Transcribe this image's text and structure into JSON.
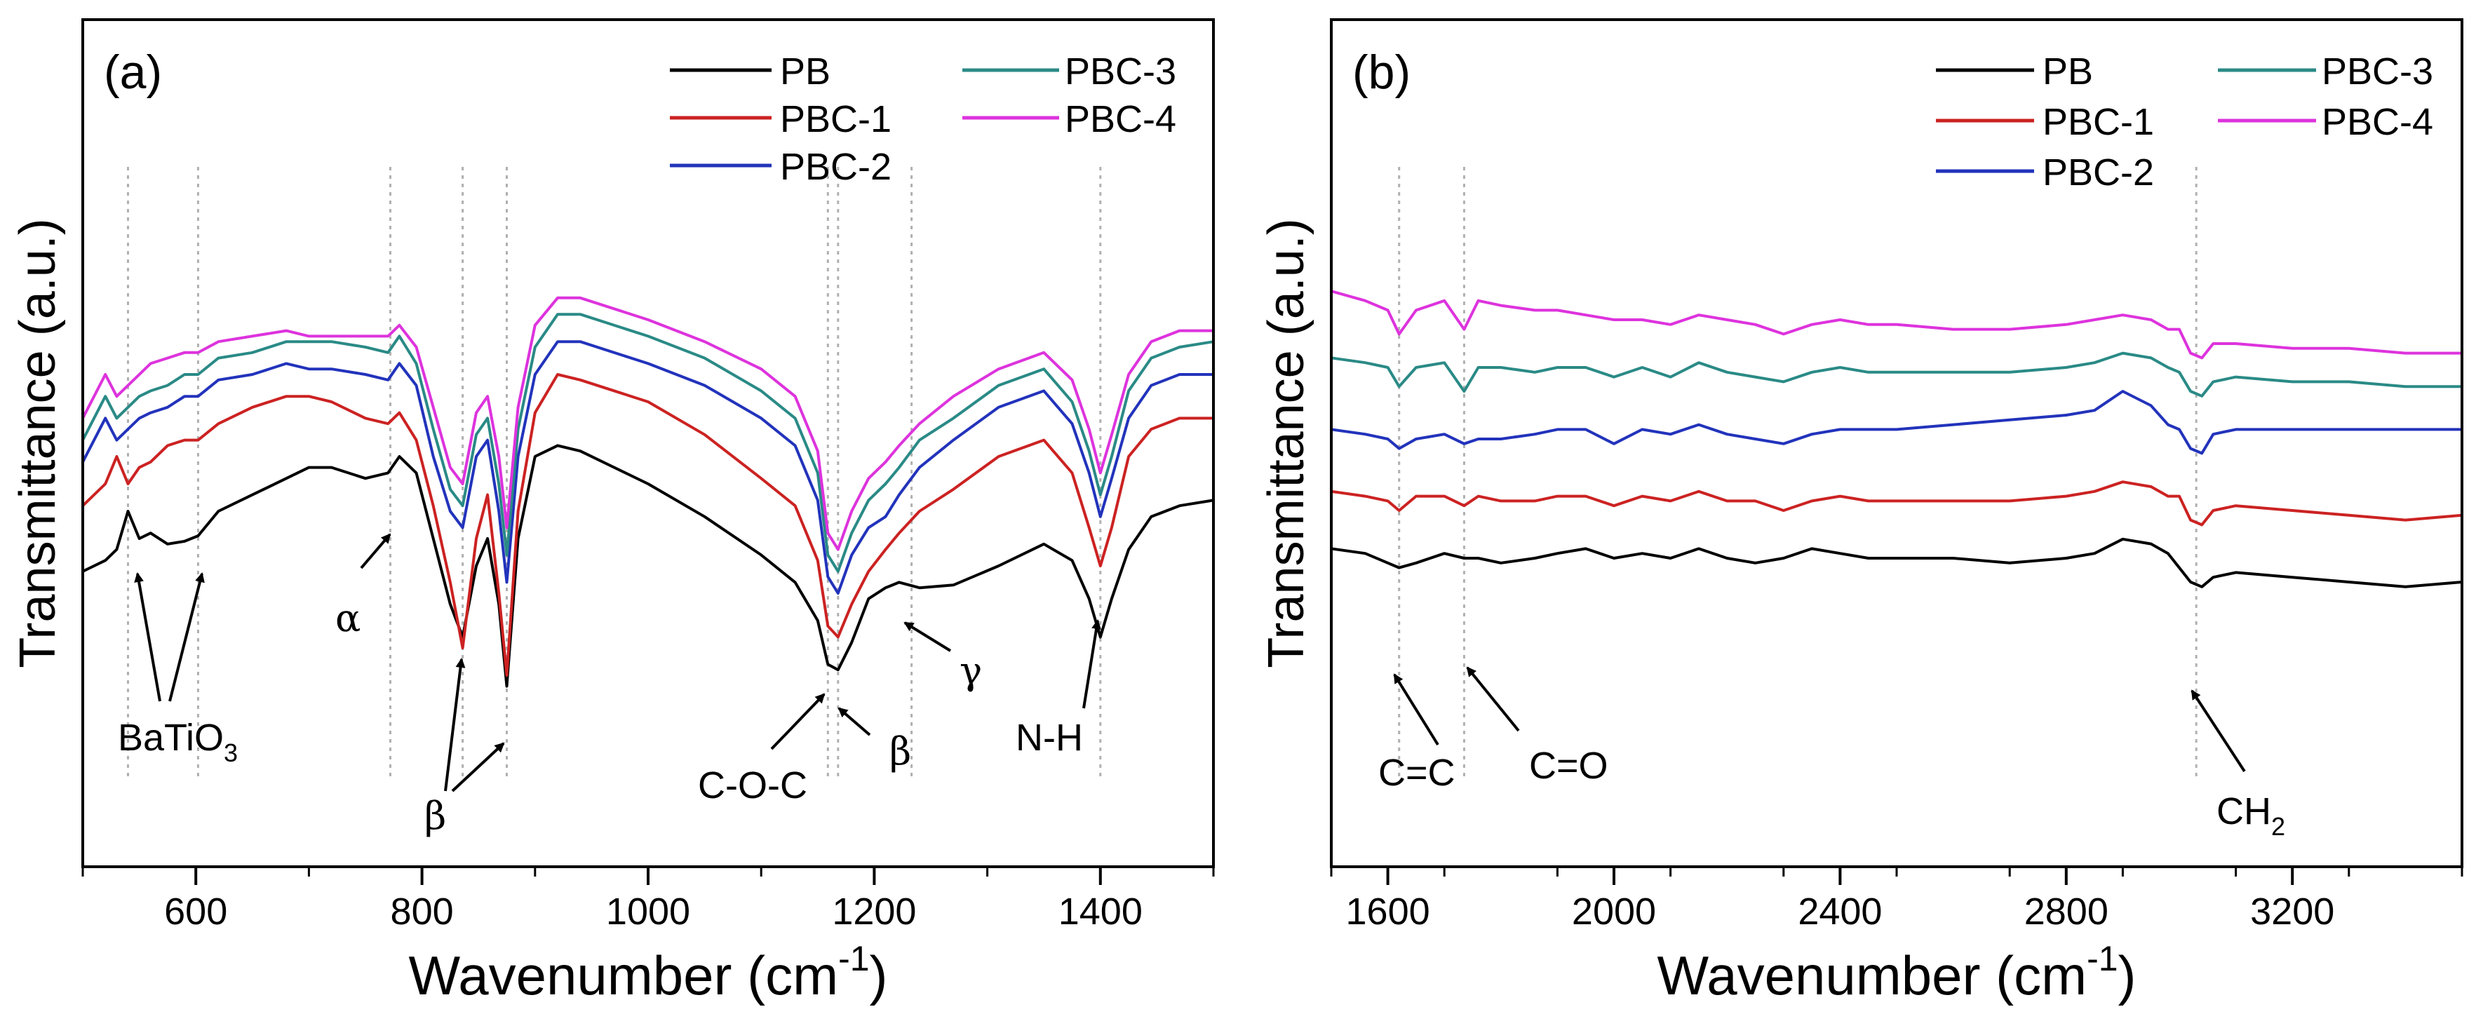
{
  "chart_data": [
    {
      "type": "line",
      "panel_label": "(a)",
      "xlabel_main": "Wavenumber (cm",
      "xlabel_sup": "-1",
      "xlabel_end": ")",
      "ylabel": "Transmittance (a.u.)",
      "xlim": [
        500,
        1500
      ],
      "ylim": [
        0,
        100
      ],
      "x_ticks": [
        600,
        800,
        1000,
        1200,
        1400
      ],
      "x_tick_labels": [
        "600",
        "800",
        "1000",
        "1200",
        "1400"
      ],
      "reference_lines": [
        540,
        602,
        772,
        836,
        875,
        1159,
        1168,
        1233,
        1400
      ],
      "series": [
        {
          "name": "PB",
          "color": "#000000",
          "x": [
            500,
            520,
            530,
            540,
            550,
            560,
            575,
            590,
            602,
            620,
            650,
            680,
            700,
            720,
            750,
            770,
            780,
            795,
            810,
            825,
            836,
            848,
            858,
            868,
            875,
            885,
            900,
            920,
            940,
            1000,
            1050,
            1100,
            1130,
            1150,
            1159,
            1168,
            1180,
            1195,
            1210,
            1222,
            1240,
            1270,
            1310,
            1350,
            1375,
            1390,
            1400,
            1410,
            1425,
            1445,
            1470,
            1500
          ],
          "y": [
            34,
            36,
            38,
            45,
            40,
            41,
            39,
            39.5,
            40.5,
            45,
            48,
            51,
            53,
            53,
            51,
            52,
            55,
            52,
            40,
            28,
            22,
            35,
            40,
            28,
            13,
            40,
            55,
            57,
            56,
            50,
            44,
            37,
            32,
            25,
            17,
            16,
            21,
            29,
            31,
            32,
            31,
            31.5,
            35,
            39,
            36,
            29,
            22,
            29,
            38,
            44,
            46,
            47
          ]
        },
        {
          "name": "PBC-1",
          "color": "#cc2222",
          "x": [
            500,
            520,
            530,
            540,
            550,
            560,
            575,
            590,
            602,
            620,
            650,
            680,
            700,
            720,
            750,
            770,
            780,
            795,
            810,
            825,
            836,
            848,
            858,
            868,
            875,
            885,
            900,
            920,
            940,
            1000,
            1050,
            1100,
            1130,
            1150,
            1159,
            1168,
            1180,
            1195,
            1210,
            1222,
            1240,
            1270,
            1310,
            1350,
            1375,
            1390,
            1400,
            1410,
            1425,
            1445,
            1470,
            1500
          ],
          "y": [
            46,
            50,
            55,
            50,
            53,
            54,
            57,
            58,
            58,
            61,
            64,
            66,
            66,
            65,
            62,
            61,
            63,
            58,
            46,
            32,
            20,
            40,
            48,
            30,
            15,
            45,
            63,
            70,
            69,
            65,
            59,
            51,
            46,
            36,
            24,
            22,
            28,
            34,
            38,
            41,
            45,
            49,
            55,
            58,
            52,
            42,
            35,
            42,
            55,
            60,
            62,
            62
          ]
        },
        {
          "name": "PBC-2",
          "color": "#2233bb",
          "x": [
            500,
            520,
            530,
            540,
            550,
            560,
            575,
            590,
            602,
            620,
            650,
            680,
            700,
            720,
            750,
            770,
            780,
            795,
            810,
            825,
            836,
            848,
            858,
            868,
            875,
            885,
            900,
            920,
            940,
            1000,
            1050,
            1100,
            1130,
            1150,
            1159,
            1168,
            1180,
            1195,
            1210,
            1222,
            1240,
            1270,
            1310,
            1350,
            1375,
            1390,
            1400,
            1410,
            1425,
            1445,
            1470,
            1500
          ],
          "y": [
            54,
            62,
            58,
            60,
            62,
            63,
            64,
            66,
            66,
            69,
            70,
            72,
            71,
            71,
            70,
            69,
            72,
            68,
            55,
            45,
            42,
            55,
            58,
            45,
            32,
            55,
            70,
            76,
            76,
            72,
            68,
            62,
            57,
            47,
            33,
            30,
            37,
            42,
            44,
            48,
            53,
            58,
            64,
            67,
            61,
            52,
            44,
            51,
            62,
            68,
            70,
            70
          ]
        },
        {
          "name": "PBC-3",
          "color": "#2a8a86",
          "x": [
            500,
            520,
            530,
            540,
            550,
            560,
            575,
            590,
            602,
            620,
            650,
            680,
            700,
            720,
            750,
            770,
            780,
            795,
            810,
            825,
            836,
            848,
            858,
            868,
            875,
            885,
            900,
            920,
            940,
            1000,
            1050,
            1100,
            1130,
            1150,
            1159,
            1168,
            1180,
            1195,
            1210,
            1222,
            1240,
            1270,
            1310,
            1350,
            1375,
            1390,
            1400,
            1410,
            1425,
            1445,
            1470,
            1500
          ],
          "y": [
            58,
            66,
            62,
            64,
            66,
            67,
            68,
            70,
            70,
            73,
            74,
            76,
            76,
            76,
            75,
            74,
            77,
            72,
            60,
            49,
            46,
            59,
            62,
            50,
            37,
            60,
            75,
            81,
            81,
            77,
            73,
            67,
            62,
            52,
            37,
            34,
            41,
            47,
            50,
            53,
            58,
            62,
            68,
            71,
            65,
            56,
            48,
            55,
            67,
            73,
            75,
            76
          ]
        },
        {
          "name": "PBC-4",
          "color": "#dd33dd",
          "x": [
            500,
            520,
            530,
            540,
            550,
            560,
            575,
            590,
            602,
            620,
            650,
            680,
            700,
            720,
            750,
            770,
            780,
            795,
            810,
            825,
            836,
            848,
            858,
            868,
            875,
            885,
            900,
            920,
            940,
            1000,
            1050,
            1100,
            1130,
            1150,
            1159,
            1168,
            1180,
            1195,
            1210,
            1222,
            1240,
            1270,
            1310,
            1350,
            1375,
            1390,
            1400,
            1410,
            1425,
            1445,
            1470,
            1500
          ],
          "y": [
            62,
            70,
            66,
            68,
            70,
            72,
            73,
            74,
            74,
            76,
            77,
            78,
            77,
            77,
            77,
            77,
            79,
            75,
            64,
            53,
            50,
            63,
            66,
            55,
            42,
            64,
            79,
            84,
            84,
            80,
            76,
            71,
            66,
            56,
            41,
            38,
            45,
            51,
            54,
            57,
            61,
            66,
            71,
            74,
            69,
            60,
            52,
            59,
            70,
            76,
            78,
            78
          ]
        }
      ],
      "legend": {
        "placement": "top-right",
        "col1": [
          "PB",
          "PBC-1",
          "PBC-2"
        ],
        "col2": [
          "PBC-3",
          "PBC-4"
        ]
      },
      "annotations": [
        {
          "text": "BaTiO",
          "sub": "3",
          "style": "sans"
        },
        {
          "text": "α",
          "style": "serif"
        },
        {
          "text": "β",
          "style": "serif"
        },
        {
          "text": "C-O-C",
          "style": "sans"
        },
        {
          "text": "β",
          "style": "serif"
        },
        {
          "text": "γ",
          "style": "serif"
        },
        {
          "text": "N-H",
          "style": "sans"
        }
      ]
    },
    {
      "type": "line",
      "panel_label": "(b)",
      "xlabel_main": "Wavenumber (cm",
      "xlabel_sup": "-1",
      "xlabel_end": ")",
      "ylabel": "Transmittance (a.u.)",
      "xlim": [
        1500,
        3500
      ],
      "ylim": [
        0,
        100
      ],
      "x_ticks": [
        1600,
        2000,
        2400,
        2800,
        3200
      ],
      "x_tick_labels": [
        "1600",
        "2000",
        "2400",
        "2800",
        "3200"
      ],
      "reference_lines": [
        1620,
        1735,
        3030
      ],
      "series": [
        {
          "name": "PB",
          "color": "#000000",
          "x": [
            1500,
            1560,
            1600,
            1620,
            1650,
            1700,
            1735,
            1760,
            1800,
            1860,
            1900,
            1950,
            2000,
            2050,
            2100,
            2150,
            2200,
            2250,
            2300,
            2350,
            2400,
            2450,
            2500,
            2600,
            2700,
            2800,
            2850,
            2900,
            2950,
            2980,
            3000,
            3020,
            3040,
            3060,
            3100,
            3200,
            3300,
            3400,
            3500
          ],
          "y": [
            32,
            31,
            29,
            28,
            29,
            31,
            30,
            30,
            29,
            30,
            31,
            32,
            30,
            31,
            30,
            32,
            30,
            29,
            30,
            32,
            31,
            30,
            30,
            30,
            29,
            30,
            31,
            34,
            33,
            31,
            28,
            25,
            24,
            26,
            27,
            26,
            25,
            24,
            25
          ]
        },
        {
          "name": "PBC-1",
          "color": "#cc2222",
          "x": [
            1500,
            1560,
            1600,
            1620,
            1650,
            1700,
            1735,
            1760,
            1800,
            1860,
            1900,
            1950,
            2000,
            2050,
            2100,
            2150,
            2200,
            2250,
            2300,
            2350,
            2400,
            2450,
            2500,
            2600,
            2700,
            2800,
            2850,
            2900,
            2950,
            2980,
            3000,
            3020,
            3040,
            3060,
            3100,
            3200,
            3300,
            3400,
            3500
          ],
          "y": [
            44,
            43,
            42,
            40,
            43,
            43,
            41,
            43,
            42,
            42,
            43,
            43,
            41,
            43,
            42,
            44,
            42,
            42,
            40,
            42,
            43,
            42,
            42,
            42,
            42,
            43,
            44,
            46,
            45,
            43,
            43,
            38,
            37,
            40,
            41,
            40,
            39,
            38,
            39
          ]
        },
        {
          "name": "PBC-2",
          "color": "#2233bb",
          "x": [
            1500,
            1560,
            1600,
            1620,
            1650,
            1700,
            1735,
            1760,
            1800,
            1860,
            1900,
            1950,
            2000,
            2050,
            2100,
            2150,
            2200,
            2250,
            2300,
            2350,
            2400,
            2450,
            2500,
            2600,
            2700,
            2800,
            2850,
            2900,
            2950,
            2980,
            3000,
            3020,
            3040,
            3060,
            3100,
            3200,
            3300,
            3400,
            3500
          ],
          "y": [
            57,
            56,
            55,
            53,
            55,
            56,
            54,
            55,
            55,
            56,
            57,
            57,
            54,
            57,
            56,
            58,
            56,
            55,
            54,
            56,
            57,
            57,
            57,
            58,
            59,
            60,
            61,
            65,
            62,
            58,
            57,
            53,
            52,
            56,
            57,
            57,
            57,
            57,
            57
          ]
        },
        {
          "name": "PBC-3",
          "color": "#2a8a86",
          "x": [
            1500,
            1560,
            1600,
            1620,
            1650,
            1700,
            1735,
            1760,
            1800,
            1860,
            1900,
            1950,
            2000,
            2050,
            2100,
            2150,
            2200,
            2250,
            2300,
            2350,
            2400,
            2450,
            2500,
            2600,
            2700,
            2800,
            2850,
            2900,
            2950,
            2980,
            3000,
            3020,
            3040,
            3060,
            3100,
            3200,
            3300,
            3400,
            3500
          ],
          "y": [
            72,
            71,
            70,
            66,
            70,
            71,
            65,
            70,
            70,
            69,
            70,
            70,
            68,
            70,
            68,
            71,
            69,
            68,
            67,
            69,
            70,
            69,
            69,
            69,
            69,
            70,
            71,
            73,
            72,
            70,
            69,
            65,
            64,
            67,
            68,
            67,
            67,
            66,
            66
          ]
        },
        {
          "name": "PBC-4",
          "color": "#dd33dd",
          "x": [
            1500,
            1560,
            1600,
            1620,
            1650,
            1700,
            1735,
            1760,
            1800,
            1860,
            1900,
            1950,
            2000,
            2050,
            2100,
            2150,
            2200,
            2250,
            2300,
            2350,
            2400,
            2450,
            2500,
            2600,
            2700,
            2800,
            2850,
            2900,
            2950,
            2980,
            3000,
            3020,
            3040,
            3060,
            3100,
            3200,
            3300,
            3400,
            3500
          ],
          "y": [
            86,
            84,
            82,
            77,
            82,
            84,
            78,
            84,
            83,
            82,
            82,
            81,
            80,
            80,
            79,
            81,
            80,
            79,
            77,
            79,
            80,
            79,
            79,
            78,
            78,
            79,
            80,
            81,
            80,
            78,
            78,
            73,
            72,
            75,
            75,
            74,
            74,
            73,
            73
          ]
        }
      ],
      "legend": {
        "placement": "top-right",
        "col1": [
          "PB",
          "PBC-1",
          "PBC-2"
        ],
        "col2": [
          "PBC-3",
          "PBC-4"
        ]
      },
      "annotations": [
        {
          "text": "C=C",
          "style": "sans"
        },
        {
          "text": "C=O",
          "style": "sans"
        },
        {
          "text": "CH",
          "sub": "2",
          "style": "sans"
        }
      ]
    }
  ]
}
